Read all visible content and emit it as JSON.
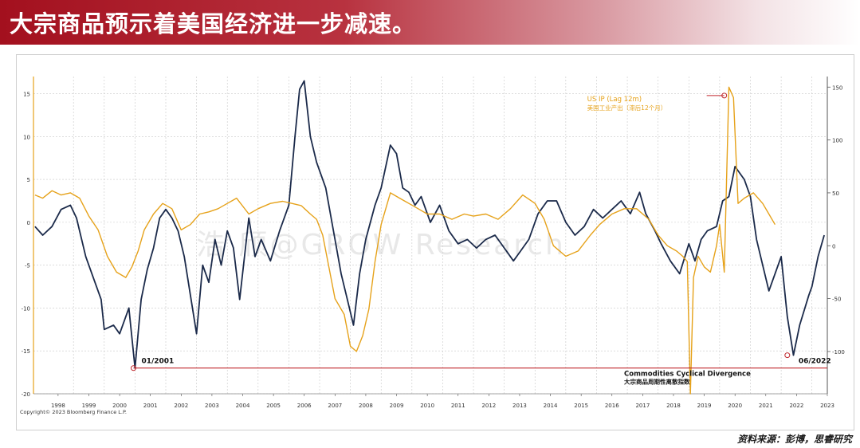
{
  "title": "大宗商品预示着美国经济进一步减速。",
  "source": "资料来源：彭博，思睿研究",
  "copyright": "Copyright© 2023 Bloomberg Finance L.P.",
  "watermark": "浩 颀@GROW Research",
  "colors": {
    "title_bg": "#a3101e",
    "commodities": "#1b2a4a",
    "us_ip": "#e6a21a",
    "marker_red": "#c0282d",
    "grid": "#c8c8c8"
  },
  "chart_data": {
    "type": "line",
    "x_ticks": [
      "1998",
      "1999",
      "2000",
      "2001",
      "2002",
      "2003",
      "2004",
      "2005",
      "2006",
      "2007",
      "2008",
      "2009",
      "2010",
      "2011",
      "2012",
      "2013",
      "2014",
      "2015",
      "2016",
      "2017",
      "2018",
      "2019",
      "2020",
      "2021",
      "2022",
      "2023"
    ],
    "x_range": [
      1997.7,
      2023.5
    ],
    "left_axis": {
      "ticks": [
        "15",
        "10",
        "5",
        "0",
        "-5",
        "-10",
        "-15",
        "-20"
      ],
      "ylim": [
        -20,
        17
      ]
    },
    "right_axis": {
      "ticks": [
        "150",
        "100",
        "50",
        "0",
        "-50",
        "-100"
      ],
      "ylim": [
        -140,
        160
      ]
    },
    "grid": true,
    "series": [
      {
        "name": "Commodities Cyclical Divergence",
        "name_cn": "大宗商品周期性离散指数",
        "axis": "left",
        "color": "#1b2a4a",
        "x": [
          1997.75,
          1998.0,
          1998.3,
          1998.6,
          1998.9,
          1999.1,
          1999.4,
          1999.6,
          1999.9,
          2000.0,
          2000.3,
          2000.5,
          2000.8,
          2001.0,
          2001.2,
          2001.4,
          2001.6,
          2001.8,
          2002.0,
          2002.2,
          2002.4,
          2002.6,
          2002.8,
          2003.0,
          2003.2,
          2003.4,
          2003.6,
          2003.8,
          2004.0,
          2004.2,
          2004.4,
          2004.7,
          2004.9,
          2005.1,
          2005.4,
          2005.7,
          2006.0,
          2006.2,
          2006.35,
          2006.5,
          2006.7,
          2006.9,
          2007.2,
          2007.5,
          2007.7,
          2007.9,
          2008.1,
          2008.3,
          2008.5,
          2008.8,
          2009.0,
          2009.3,
          2009.5,
          2009.7,
          2009.9,
          2010.1,
          2010.3,
          2010.6,
          2010.9,
          2011.2,
          2011.5,
          2011.8,
          2012.1,
          2012.4,
          2012.7,
          2013.0,
          2013.3,
          2013.5,
          2013.8,
          2014.1,
          2014.4,
          2014.7,
          2015.0,
          2015.3,
          2015.6,
          2015.9,
          2016.2,
          2016.5,
          2016.8,
          2017.1,
          2017.4,
          2017.6,
          2017.9,
          2018.1,
          2018.4,
          2018.7,
          2019.0,
          2019.2,
          2019.4,
          2019.6,
          2019.9,
          2020.1,
          2020.3,
          2020.5,
          2020.8,
          2021.0,
          2021.2,
          2021.4,
          2021.6,
          2021.8,
          2022.0,
          2022.2,
          2022.4,
          2022.6,
          2022.9,
          2023.0,
          2023.2,
          2023.4
        ],
        "y": [
          -0.5,
          -1.5,
          -0.5,
          1.5,
          2.0,
          0.5,
          -4.0,
          -6.0,
          -9.0,
          -12.5,
          -12.0,
          -13.0,
          -10.0,
          -17.0,
          -9.0,
          -5.5,
          -3.0,
          0.5,
          1.5,
          0.5,
          -1.0,
          -4.0,
          -8.5,
          -13.0,
          -5.0,
          -7.0,
          -2.0,
          -5.0,
          -1.0,
          -3.0,
          -9.0,
          0.5,
          -4.0,
          -2.0,
          -4.5,
          -1.0,
          2.0,
          10.0,
          15.5,
          16.5,
          10.0,
          7.0,
          4.0,
          -2.0,
          -6.0,
          -9.0,
          -12.0,
          -6.0,
          -2.0,
          2.0,
          4.0,
          9.0,
          8.0,
          4.0,
          3.5,
          2.0,
          3.0,
          0.0,
          2.0,
          -1.0,
          -2.5,
          -2.0,
          -3.0,
          -2.0,
          -1.5,
          -3.0,
          -4.5,
          -3.5,
          -2.0,
          1.0,
          2.5,
          2.5,
          0.0,
          -1.5,
          -0.5,
          1.5,
          0.5,
          1.5,
          2.5,
          1.0,
          3.5,
          1.0,
          -1.0,
          -2.5,
          -4.5,
          -6.0,
          -2.5,
          -4.5,
          -2.0,
          -1.0,
          -0.5,
          2.5,
          3.0,
          6.5,
          5.0,
          3.0,
          -2.0,
          -5.0,
          -8.0,
          -6.0,
          -4.0,
          -11.0,
          -15.5,
          -12.0,
          -8.5,
          -7.5,
          -4.0,
          -1.5
        ]
      },
      {
        "name": "US IP (Lag 12m)",
        "name_cn": "美国工业产出（滞后12个月）",
        "axis": "right",
        "color": "#e6a21a",
        "x": [
          1997.75,
          1998.0,
          1998.3,
          1998.6,
          1998.9,
          1999.2,
          1999.5,
          1999.8,
          2000.1,
          2000.4,
          2000.7,
          2000.9,
          2001.1,
          2001.3,
          2001.6,
          2001.9,
          2002.2,
          2002.5,
          2002.8,
          2003.1,
          2003.4,
          2003.7,
          2004.0,
          2004.3,
          2004.7,
          2005.0,
          2005.4,
          2005.8,
          2006.1,
          2006.4,
          2006.7,
          2006.9,
          2007.1,
          2007.3,
          2007.5,
          2007.8,
          2008.0,
          2008.2,
          2008.4,
          2008.6,
          2008.8,
          2009.0,
          2009.3,
          2009.6,
          2009.9,
          2010.2,
          2010.5,
          2010.9,
          2011.3,
          2011.7,
          2012.0,
          2012.4,
          2012.8,
          2013.2,
          2013.6,
          2014.0,
          2014.3,
          2014.6,
          2015.0,
          2015.4,
          2015.8,
          2016.1,
          2016.5,
          2016.9,
          2017.3,
          2017.7,
          2018.0,
          2018.3,
          2018.6,
          2018.8,
          2018.95,
          2019.05,
          2019.15,
          2019.3,
          2019.5,
          2019.7,
          2019.9,
          2020.0,
          2020.15,
          2020.3,
          2020.45,
          2020.6,
          2020.8,
          2021.1,
          2021.4,
          2021.6,
          2021.8
        ],
        "y": [
          48,
          45,
          52,
          48,
          50,
          45,
          28,
          15,
          -10,
          -25,
          -30,
          -20,
          -5,
          15,
          30,
          40,
          35,
          15,
          20,
          30,
          32,
          35,
          40,
          45,
          30,
          35,
          40,
          42,
          40,
          38,
          30,
          25,
          10,
          -20,
          -50,
          -65,
          -95,
          -100,
          -85,
          -60,
          -15,
          20,
          50,
          45,
          40,
          35,
          30,
          30,
          25,
          30,
          28,
          30,
          25,
          35,
          48,
          40,
          25,
          0,
          -10,
          -5,
          10,
          20,
          30,
          35,
          35,
          25,
          10,
          0,
          -5,
          -10,
          -15,
          -140,
          -30,
          -10,
          -20,
          -25,
          0,
          20,
          -25,
          150,
          140,
          40,
          45,
          50,
          40,
          30,
          20
        ]
      }
    ],
    "annotations": [
      {
        "label": "01/2001",
        "x": 2000.95,
        "y": -17.0,
        "series": "Commodities Cyclical Divergence"
      },
      {
        "label": "06/2022",
        "x": 2022.2,
        "y": -15.5,
        "series": "Commodities Cyclical Divergence"
      },
      {
        "label": "US IP (Lag 12m)",
        "label_cn": "美国工业产出（滞后12个月）",
        "x": 2020.15,
        "y": 142,
        "series": "US IP (Lag 12m)"
      }
    ]
  }
}
